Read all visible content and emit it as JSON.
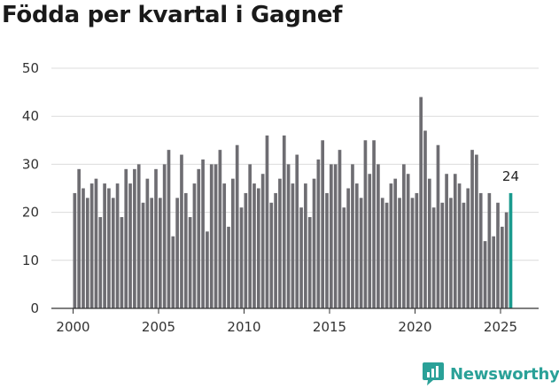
{
  "chart_data": {
    "type": "bar",
    "title": "Födda per kvartal i Gagnef",
    "xlabel": "",
    "ylabel": "",
    "ylim": [
      0,
      50
    ],
    "yticks": [
      0,
      10,
      20,
      30,
      40,
      50
    ],
    "xticks": [
      2000,
      2005,
      2010,
      2015,
      2020,
      2025
    ],
    "start_year": 2000,
    "grid": true,
    "colors": {
      "bar": "#6e6d72",
      "highlight": "#1a9a8e"
    },
    "values": [
      24,
      29,
      25,
      23,
      26,
      27,
      19,
      26,
      25,
      23,
      26,
      19,
      29,
      26,
      29,
      30,
      22,
      27,
      23,
      29,
      23,
      30,
      33,
      15,
      23,
      32,
      24,
      19,
      26,
      29,
      31,
      16,
      30,
      30,
      33,
      26,
      17,
      27,
      34,
      21,
      24,
      30,
      26,
      25,
      28,
      36,
      22,
      24,
      27,
      36,
      30,
      26,
      32,
      21,
      26,
      19,
      27,
      31,
      35,
      24,
      30,
      30,
      33,
      21,
      25,
      30,
      26,
      23,
      35,
      28,
      35,
      30,
      23,
      22,
      26,
      27,
      23,
      30,
      28,
      23,
      24,
      44,
      37,
      27,
      21,
      34,
      22,
      28,
      23,
      28,
      26,
      22,
      25,
      33,
      32,
      24,
      14,
      24,
      15,
      22,
      17,
      20,
      24
    ],
    "last_value_label": "24"
  },
  "branding": {
    "name": "Newsworthy",
    "icon": "newsworthy-logo-icon"
  }
}
